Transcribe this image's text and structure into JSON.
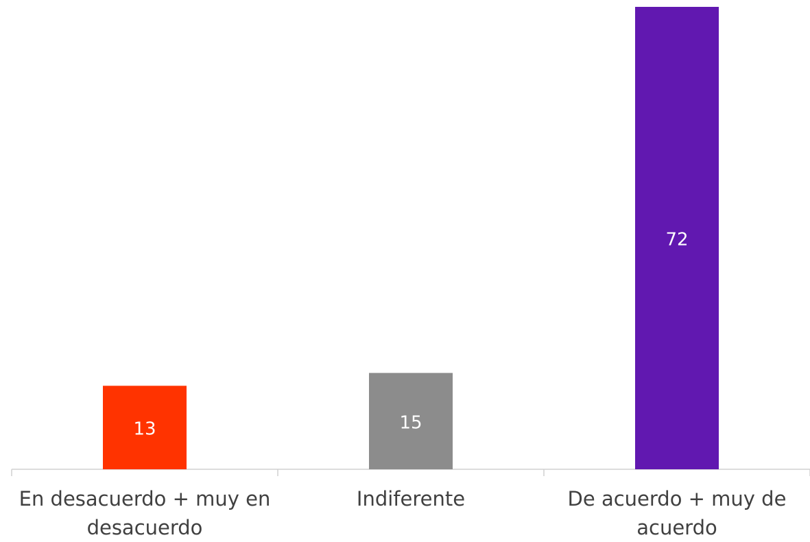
{
  "chart_data": {
    "type": "bar",
    "categories": [
      "En desacuerdo + muy en desacuerdo",
      "Indiferente",
      "De acuerdo + muy de acuerdo"
    ],
    "values": [
      13,
      15,
      72
    ],
    "colors": [
      "#ff3300",
      "#8c8c8c",
      "#6118b0"
    ]
  }
}
